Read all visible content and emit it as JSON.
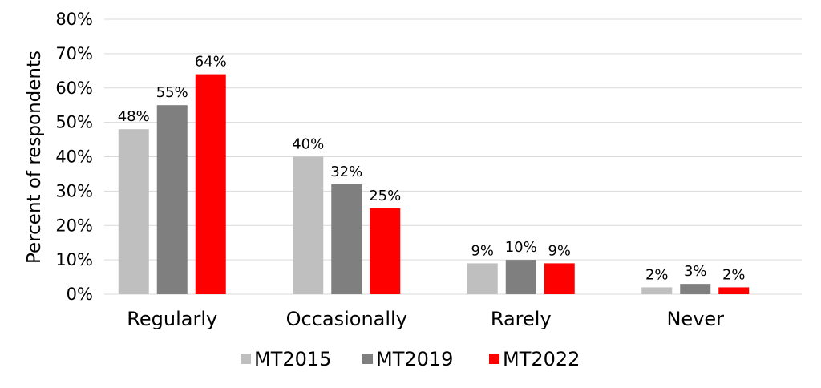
{
  "chart_data": {
    "type": "bar",
    "title": "",
    "xlabel": "",
    "ylabel": "Percent of respondents",
    "ylim": [
      0,
      80
    ],
    "ytick_step": 10,
    "ytick_suffix": "%",
    "grid": true,
    "legend_position": "bottom",
    "categories": [
      "Regularly",
      "Occasionally",
      "Rarely",
      "Never"
    ],
    "series": [
      {
        "name": "MT2015",
        "color": "#bfbfbf",
        "values": [
          48,
          40,
          9,
          2
        ]
      },
      {
        "name": "MT2019",
        "color": "#7f7f7f",
        "values": [
          55,
          32,
          10,
          3
        ]
      },
      {
        "name": "MT2022",
        "color": "#ff0000",
        "values": [
          64,
          25,
          9,
          2
        ]
      }
    ]
  }
}
